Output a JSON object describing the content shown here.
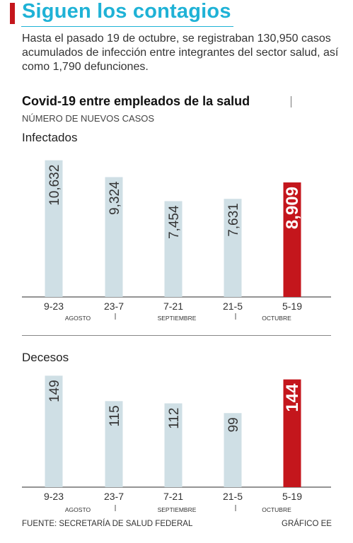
{
  "header": {
    "headline": "Siguen los contagios",
    "intro": "Hasta el pasado 19 de octubre, se registraban 130,950 casos acumulados de infección entre integrantes del sector salud, así como 1,790 defunciones."
  },
  "chart_header": {
    "title": "Covid-19 entre empleados de la salud",
    "subtitle": "NÚMERO DE NUEVOS CASOS"
  },
  "colors": {
    "bar": "#cfdfe5",
    "highlight": "#c4161c",
    "accent": "#1fb2d6",
    "axis": "#555555"
  },
  "chart_data": [
    {
      "type": "bar",
      "title": "Infectados",
      "categories": [
        "9-23",
        "23-7",
        "7-21",
        "21-5",
        "5-19"
      ],
      "values": [
        10632,
        9324,
        7454,
        7631,
        8909
      ],
      "value_labels": [
        "10,632",
        "9,324",
        "7,454",
        "7,631",
        "8,909"
      ],
      "highlight_index": 4,
      "month_labels": [
        "AGOSTO",
        "SEPTIEMBRE",
        "OCTUBRE"
      ],
      "ylim": [
        0,
        11000
      ]
    },
    {
      "type": "bar",
      "title": "Decesos",
      "categories": [
        "9-23",
        "23-7",
        "7-21",
        "21-5",
        "5-19"
      ],
      "values": [
        149,
        115,
        112,
        99,
        144
      ],
      "value_labels": [
        "149",
        "115",
        "112",
        "99",
        "144"
      ],
      "highlight_index": 4,
      "month_labels": [
        "AGOSTO",
        "SEPTIEMBRE",
        "OCTUBRE"
      ],
      "ylim": [
        0,
        155
      ]
    }
  ],
  "footer": {
    "source": "FUENTE: SECRETARÍA DE SALUD FEDERAL",
    "credit": "GRÁFICO EE"
  }
}
